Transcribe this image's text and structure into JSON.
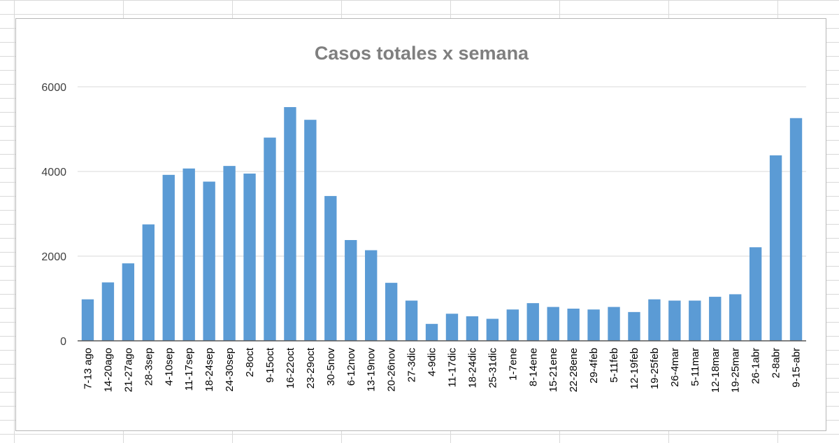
{
  "chart_data": {
    "type": "bar",
    "title": "Casos totales x semana",
    "xlabel": "",
    "ylabel": "",
    "ylim": [
      0,
      6000
    ],
    "yticks": [
      0,
      2000,
      4000,
      6000
    ],
    "ytick_labels": [
      "0",
      "2000",
      "4000",
      "6000"
    ],
    "grid": true,
    "legend": "none",
    "bar_color": "#5b9bd5",
    "categories": [
      "7-13 ago",
      "14-20ago",
      "21-27ago",
      "28-3sep",
      "4-10sep",
      "11-17sep",
      "18-24sep",
      "24-30sep",
      "2-8oct",
      "9-15oct",
      "16-22oct",
      "23-29oct",
      "30-5nov",
      "6-12nov",
      "13-19nov",
      "20-26nov",
      "27-3dic",
      "4-9dic",
      "11-17dic",
      "18-24dic",
      "25-31dic",
      "1-7ene",
      "8-14ene",
      "15-21ene",
      "22-28ene",
      "29-4feb",
      "5-11feb",
      "12-19feb",
      "19-25feb",
      "26-4mar",
      "5-11mar",
      "12-18mar",
      "19-25mar",
      "26-1abr",
      "2-8abr",
      "9-15-abr"
    ],
    "values": [
      980,
      1380,
      1830,
      2750,
      3920,
      4070,
      3760,
      4130,
      3950,
      4800,
      5520,
      5220,
      3420,
      2380,
      2140,
      1370,
      950,
      400,
      640,
      580,
      520,
      740,
      890,
      800,
      760,
      740,
      800,
      680,
      980,
      950,
      950,
      1040,
      1100,
      2210,
      4380,
      5260
    ]
  }
}
